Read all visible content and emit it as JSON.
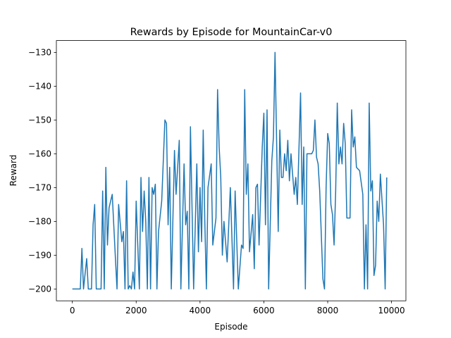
{
  "chart_data": {
    "type": "line",
    "title": "Rewards by Episode for MountainCar-v0",
    "xlabel": "Episode",
    "ylabel": "Reward",
    "x": [
      0,
      250,
      300,
      350,
      450,
      500,
      600,
      650,
      700,
      750,
      900,
      950,
      1000,
      1050,
      1100,
      1150,
      1250,
      1350,
      1400,
      1450,
      1550,
      1600,
      1650,
      1700,
      1750,
      1800,
      1850,
      1900,
      1950,
      2000,
      2100,
      2150,
      2200,
      2250,
      2300,
      2350,
      2400,
      2450,
      2500,
      2550,
      2600,
      2650,
      2700,
      2800,
      2900,
      2950,
      3000,
      3050,
      3100,
      3200,
      3250,
      3350,
      3400,
      3500,
      3550,
      3600,
      3650,
      3700,
      3800,
      3900,
      3950,
      4000,
      4050,
      4100,
      4150,
      4200,
      4250,
      4350,
      4400,
      4500,
      4550,
      4600,
      4650,
      4700,
      4750,
      4850,
      4950,
      5050,
      5100,
      5200,
      5300,
      5350,
      5400,
      5450,
      5500,
      5550,
      5650,
      5700,
      5750,
      5800,
      5850,
      5950,
      6000,
      6050,
      6100,
      6150,
      6250,
      6300,
      6350,
      6450,
      6500,
      6550,
      6600,
      6650,
      6700,
      6750,
      6800,
      6850,
      6950,
      7000,
      7050,
      7150,
      7200,
      7250,
      7300,
      7350,
      7500,
      7550,
      7600,
      7650,
      7700,
      7750,
      7850,
      7900,
      7950,
      8000,
      8050,
      8100,
      8150,
      8200,
      8250,
      8300,
      8350,
      8400,
      8450,
      8500,
      8550,
      8600,
      8700,
      8750,
      8800,
      8850,
      8900,
      9000,
      9100,
      9150,
      9200,
      9250,
      9300,
      9350,
      9400,
      9450,
      9500,
      9550,
      9600,
      9650,
      9750,
      9800,
      9850
    ],
    "series": [
      {
        "name": "Reward",
        "color": "#1f77b4",
        "values": [
          -200,
          -200,
          -188,
          -200,
          -191,
          -200,
          -200,
          -181,
          -175,
          -200,
          -200,
          -171,
          -200,
          -164,
          -187,
          -176,
          -172,
          -191,
          -200,
          -175,
          -186,
          -183,
          -200,
          -168,
          -200,
          -199,
          -200,
          -195,
          -200,
          -174,
          -200,
          -167,
          -183,
          -171,
          -180,
          -200,
          -167,
          -200,
          -170,
          -172,
          -169,
          -200,
          -183,
          -174,
          -150,
          -151,
          -181,
          -164,
          -200,
          -159,
          -172,
          -156,
          -200,
          -163,
          -181,
          -177,
          -200,
          -152,
          -200,
          -163,
          -189,
          -170,
          -186,
          -153,
          -180,
          -200,
          -170,
          -163,
          -187,
          -179,
          -141,
          -158,
          -167,
          -190,
          -180,
          -192,
          -170,
          -200,
          -171,
          -200,
          -187,
          -188,
          -141,
          -172,
          -163,
          -189,
          -178,
          -194,
          -170,
          -169,
          -187,
          -158,
          -148,
          -181,
          -147,
          -200,
          -162,
          -155,
          -130,
          -183,
          -153,
          -167,
          -167,
          -160,
          -165,
          -156,
          -168,
          -160,
          -172,
          -167,
          -175,
          -142,
          -175,
          -158,
          -200,
          -160,
          -160,
          -159,
          -150,
          -161,
          -163,
          -171,
          -197,
          -200,
          -170,
          -154,
          -157,
          -175,
          -178,
          -187,
          -171,
          -145,
          -163,
          -158,
          -163,
          -151,
          -157,
          -179,
          -179,
          -147,
          -158,
          -155,
          -164,
          -165,
          -172,
          -200,
          -181,
          -200,
          -145,
          -171,
          -168,
          -196,
          -193,
          -174,
          -180,
          -166,
          -181,
          -200,
          -167
        ]
      }
    ],
    "xlim": [
      -500,
      10450
    ],
    "ylim": [
      -203.5,
      -126.5
    ],
    "xticks": [
      0,
      2000,
      4000,
      6000,
      8000,
      10000
    ],
    "yticks": [
      {
        "value": -200,
        "label": "−200"
      },
      {
        "value": -190,
        "label": "−190"
      },
      {
        "value": -180,
        "label": "−180"
      },
      {
        "value": -170,
        "label": "−170"
      },
      {
        "value": -160,
        "label": "−160"
      },
      {
        "value": -150,
        "label": "−150"
      },
      {
        "value": -140,
        "label": "−140"
      },
      {
        "value": -130,
        "label": "−130"
      }
    ],
    "grid": false
  }
}
